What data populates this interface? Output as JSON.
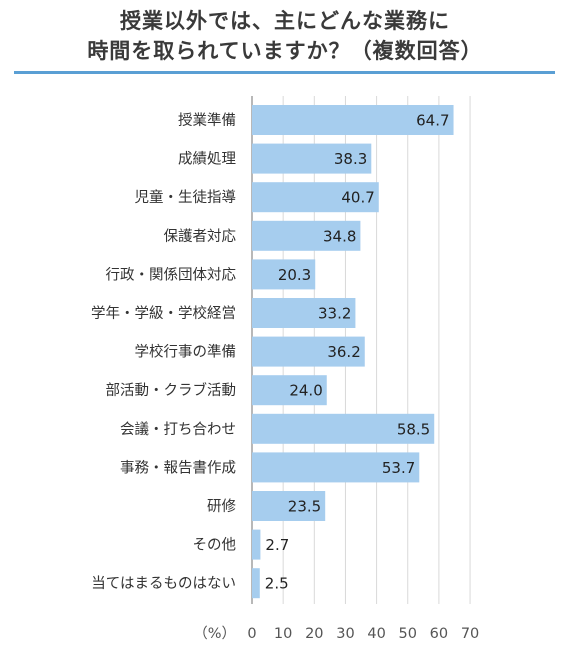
{
  "title_lines": [
    "授業以外では、主にどんな業務に",
    "時間を取られていますか？（複数回答）"
  ],
  "colors": {
    "bar": "#a6cdee",
    "title_rule": "#5a9fd4",
    "grid": "#d9d9d9",
    "axis": "#888888"
  },
  "chart_data": {
    "type": "bar",
    "orientation": "horizontal",
    "categories": [
      "授業準備",
      "成績処理",
      "児童・生徒指導",
      "保護者対応",
      "行政・関係団体対応",
      "学年・学級・学校経営",
      "学校行事の準備",
      "部活動・クラブ活動",
      "会議・打ち合わせ",
      "事務・報告書作成",
      "研修",
      "その他",
      "当てはまるものはない"
    ],
    "values": [
      64.7,
      38.3,
      40.7,
      34.8,
      20.3,
      33.2,
      36.2,
      24.0,
      58.5,
      53.7,
      23.5,
      2.7,
      2.5
    ],
    "value_labels": [
      "64.7",
      "38.3",
      "40.7",
      "34.8",
      "20.3",
      "33.2",
      "36.2",
      "24.0",
      "58.5",
      "53.7",
      "23.5",
      "2.7",
      "2.5"
    ],
    "xlabel": "（%）",
    "xlim": [
      0,
      70
    ],
    "ticks": [
      "0",
      "10",
      "20",
      "30",
      "40",
      "50",
      "60",
      "70"
    ],
    "tick_values": [
      0,
      10,
      20,
      30,
      40,
      50,
      60,
      70
    ],
    "grid": true,
    "title": "授業以外では、主にどんな業務に時間を取られていますか？（複数回答）"
  }
}
